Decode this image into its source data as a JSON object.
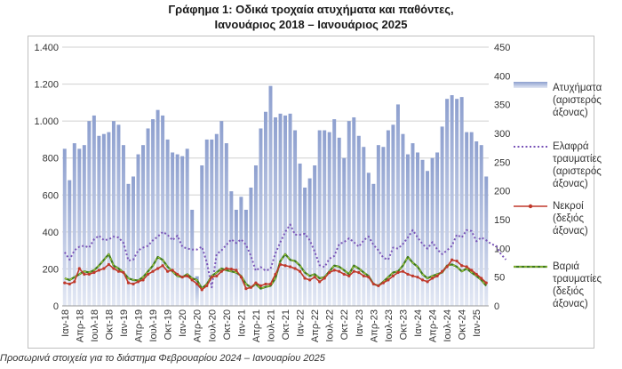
{
  "title_line1": "Γράφημα 1: Οδικά τροχαία ατυχήματα και παθόντες,",
  "title_line2": "Ιανουάριος 2018 – Ιανουάριος 2025",
  "footnote": "Προσωρινά στοιχεία για το διάστημα Φεβρουαρίου 2024 – Ιανουαρίου 2025",
  "legend": {
    "accidents": [
      "Ατυχήματα",
      "(αριστερός",
      "άξονας)"
    ],
    "light": [
      "Ελαφρά",
      "τραυματίες",
      "(αριστερός",
      "άξονας)"
    ],
    "deaths": [
      "Νεκροί",
      "(δεξιός",
      "άξονας)"
    ],
    "serious": [
      "Βαριά",
      "τραυματίες",
      "(δεξιός",
      "άξονας)"
    ]
  },
  "chart_data": {
    "type": "bar",
    "title": "Γράφημα 1: Οδικά τροχαία ατυχήματα και παθόντες, Ιανουάριος 2018 – Ιανουάριος 2025",
    "x_tick_labels": [
      "Ιαν-18",
      "Απρ-18",
      "Ιουλ-18",
      "Οκτ-18",
      "Ιαν-19",
      "Απρ-19",
      "Ιουλ-19",
      "Οκτ-19",
      "Ιαν-20",
      "Απρ-20",
      "Ιουλ-20",
      "Οκτ-20",
      "Ιαν-21",
      "Απρ-21",
      "Ιουλ-21",
      "Οκτ-21",
      "Ιαν-22",
      "Απρ-22",
      "Ιουλ-22",
      "Οκτ-22",
      "Ιαν-23",
      "Απρ-23",
      "Ιουλ-23",
      "Οκτ-23",
      "Ιαν-24",
      "Απρ-24",
      "Ιουλ-24",
      "Οκτ-24",
      "Ιαν-25"
    ],
    "y_left": {
      "ylim": [
        0,
        1400
      ],
      "ticks": [
        "0",
        "200",
        "400",
        "600",
        "800",
        "1.000",
        "1.200",
        "1.400"
      ],
      "tick_values": [
        0,
        200,
        400,
        600,
        800,
        1000,
        1200,
        1400
      ]
    },
    "y_right": {
      "ylim": [
        0,
        450
      ],
      "ticks": [
        "0",
        "50",
        "100",
        "150",
        "200",
        "250",
        "300",
        "350",
        "400",
        "450"
      ],
      "tick_values": [
        0,
        50,
        100,
        150,
        200,
        250,
        300,
        350,
        400,
        450
      ]
    },
    "grid": true,
    "legend_position": "right",
    "colors": {
      "accidents_top": "#8ea0cf",
      "accidents_bottom": "#e3e8f4",
      "light": "#7a55b8",
      "deaths": "#c0392b",
      "serious": "#3e7a1f",
      "serious_dash": "#a6c93a"
    },
    "series": [
      {
        "name": "Ατυχήματα (αριστερός άξονας)",
        "type": "bar",
        "axis": "left",
        "values": [
          850,
          680,
          880,
          850,
          870,
          1000,
          1030,
          920,
          930,
          940,
          1000,
          980,
          870,
          660,
          700,
          820,
          870,
          960,
          1010,
          1060,
          1030,
          900,
          830,
          820,
          810,
          850,
          520,
          160,
          760,
          900,
          900,
          930,
          1000,
          880,
          620,
          520,
          590,
          520,
          640,
          760,
          960,
          1050,
          1190,
          1020,
          1040,
          1030,
          1040,
          950,
          770,
          640,
          690,
          760,
          950,
          950,
          940,
          1010,
          910,
          800,
          1000,
          1020,
          920,
          860,
          720,
          660,
          870,
          860,
          950,
          980,
          1090,
          930,
          820,
          880,
          830,
          790,
          730,
          800,
          830,
          970,
          1120,
          1140,
          1120,
          1130,
          940,
          940,
          890,
          870,
          700
        ]
      },
      {
        "name": "Ελαφρά τραυματίες (αριστερός άξονας)",
        "type": "line",
        "axis": "left",
        "values": [
          290,
          250,
          300,
          320,
          325,
          315,
          360,
          380,
          355,
          360,
          375,
          370,
          340,
          245,
          250,
          300,
          315,
          325,
          355,
          375,
          400,
          385,
          355,
          380,
          320,
          310,
          305,
          305,
          320,
          235,
          100,
          280,
          300,
          330,
          360,
          340,
          360,
          330,
          270,
          190,
          210,
          190,
          200,
          285,
          345,
          400,
          440,
          385,
          385,
          390,
          355,
          295,
          220,
          210,
          255,
          270,
          335,
          345,
          365,
          345,
          320,
          355,
          375,
          330,
          300,
          260,
          250,
          315,
          310,
          335,
          370,
          410,
          370,
          335,
          310,
          345,
          305,
          280,
          300,
          325,
          385,
          370,
          410,
          405,
          350,
          370,
          355,
          335,
          325,
          280,
          250
        ]
      },
      {
        "name": "Νεκροί (δεξιός άξονας)",
        "type": "line",
        "axis": "left",
        "values": [
          40,
          38,
          42,
          65,
          55,
          55,
          58,
          62,
          65,
          72,
          65,
          60,
          58,
          40,
          38,
          42,
          45,
          55,
          60,
          65,
          70,
          60,
          62,
          55,
          50,
          52,
          45,
          38,
          28,
          35,
          50,
          52,
          60,
          65,
          64,
          62,
          50,
          30,
          32,
          40,
          35,
          38,
          38,
          55,
          72,
          70,
          68,
          65,
          60,
          48,
          45,
          50,
          42,
          48,
          58,
          62,
          60,
          55,
          52,
          60,
          58,
          52,
          50,
          38,
          35,
          40,
          45,
          52,
          58,
          60,
          55,
          52,
          50,
          45,
          42,
          48,
          52,
          60,
          68,
          80,
          78,
          70,
          68,
          62,
          55,
          48,
          40
        ]
      },
      {
        "name": "Βαριά τραυματίες (δεξιός άξονας)",
        "type": "line",
        "axis": "left",
        "values": [
          48,
          45,
          50,
          55,
          60,
          58,
          62,
          70,
          80,
          90,
          70,
          65,
          58,
          48,
          45,
          44,
          50,
          60,
          70,
          85,
          80,
          68,
          60,
          52,
          50,
          55,
          48,
          45,
          30,
          38,
          52,
          58,
          65,
          62,
          60,
          58,
          52,
          38,
          32,
          38,
          30,
          33,
          35,
          48,
          78,
          90,
          80,
          78,
          70,
          58,
          52,
          55,
          48,
          50,
          60,
          70,
          68,
          62,
          55,
          70,
          65,
          58,
          52,
          38,
          35,
          42,
          50,
          58,
          60,
          70,
          85,
          75,
          68,
          55,
          48,
          52,
          55,
          58,
          70,
          72,
          68,
          60,
          65,
          58,
          52,
          45,
          35
        ]
      }
    ]
  }
}
